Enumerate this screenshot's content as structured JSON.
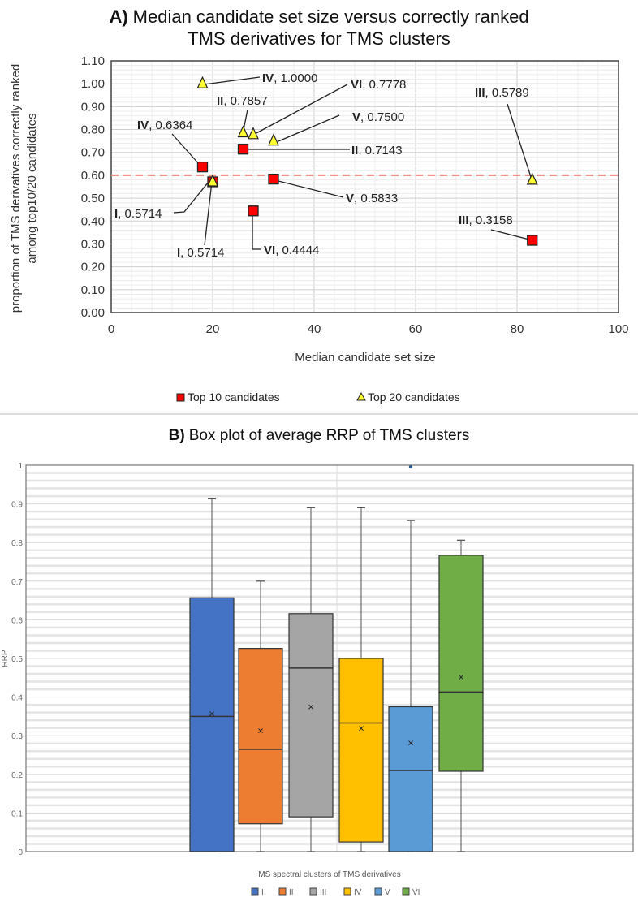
{
  "chart_data": [
    {
      "type": "scatter",
      "title_part": "A)",
      "title_line1": "Median candidate set size versus correctly ranked",
      "title_line2": "TMS derivatives for TMS clusters",
      "xlabel": "Median candidate set size",
      "ylabel_line1": "proportion  of TMS derivatives  correctly ranked",
      "ylabel_line2": "among top10/20  candidates",
      "xlim": [
        0,
        100
      ],
      "ylim": [
        0,
        1.1
      ],
      "xticks": [
        "0",
        "20",
        "40",
        "60",
        "80",
        "100"
      ],
      "yticks": [
        "0.00",
        "0.10",
        "0.20",
        "0.30",
        "0.40",
        "0.50",
        "0.60",
        "0.70",
        "0.80",
        "0.90",
        "1.00",
        "1.10"
      ],
      "grid": true,
      "reference_line": {
        "y": 0.6,
        "color": "#f08080",
        "style": "dashed"
      },
      "legend_position": "bottom",
      "series": [
        {
          "name": "Top 10 candidates",
          "marker": "square",
          "color": "#ff0000",
          "points": [
            {
              "cluster": "I",
              "x": 20,
              "y": 0.5714,
              "label_value": "0.5714"
            },
            {
              "cluster": "II",
              "x": 26,
              "y": 0.7143,
              "label_value": "0.7143"
            },
            {
              "cluster": "III",
              "x": 83,
              "y": 0.3158,
              "label_value": "0.3158"
            },
            {
              "cluster": "IV",
              "x": 18,
              "y": 0.6364,
              "label_value": "0.6364"
            },
            {
              "cluster": "V",
              "x": 32,
              "y": 0.5833,
              "label_value": "0.5833"
            },
            {
              "cluster": "VI",
              "x": 28,
              "y": 0.4444,
              "label_value": "0.4444"
            }
          ]
        },
        {
          "name": "Top 20 candidates",
          "marker": "triangle",
          "color": "#ffff33",
          "points": [
            {
              "cluster": "I",
              "x": 20,
              "y": 0.5714,
              "label_value": "0.5714"
            },
            {
              "cluster": "II",
              "x": 26,
              "y": 0.7857,
              "label_value": "0.7857"
            },
            {
              "cluster": "III",
              "x": 83,
              "y": 0.5789,
              "label_value": "0.5789"
            },
            {
              "cluster": "IV",
              "x": 18,
              "y": 1.0,
              "label_value": "1.0000"
            },
            {
              "cluster": "V",
              "x": 32,
              "y": 0.75,
              "label_value": "0.7500"
            },
            {
              "cluster": "VI",
              "x": 28,
              "y": 0.7778,
              "label_value": "0.7778"
            }
          ]
        }
      ]
    },
    {
      "type": "box",
      "title_part": "B)",
      "title": "Box plot of average RRP of TMS clusters",
      "xlabel": "MS spectral clusters of TMS derivatives",
      "ylabel": "RRP",
      "ylim": [
        0,
        1
      ],
      "yticks": [
        "0",
        "0.1",
        "0.2",
        "0.3",
        "0.4",
        "0.5",
        "0.6",
        "0.7",
        "0.8",
        "0.9",
        "1"
      ],
      "grid": true,
      "legend_position": "bottom",
      "series": [
        {
          "name": "I",
          "color": "#4472c4",
          "min": 0,
          "q1": 0,
          "median": 0.35,
          "q3": 0.657,
          "max": 0.913,
          "mean": 0.358,
          "outliers": []
        },
        {
          "name": "II",
          "color": "#ed7d31",
          "min": 0,
          "q1": 0.072,
          "median": 0.265,
          "q3": 0.526,
          "max": 0.7,
          "mean": 0.314,
          "outliers": []
        },
        {
          "name": "III",
          "color": "#a5a5a5",
          "min": 0,
          "q1": 0.09,
          "median": 0.475,
          "q3": 0.616,
          "max": 0.89,
          "mean": 0.376,
          "outliers": []
        },
        {
          "name": "IV",
          "color": "#ffc000",
          "min": 0,
          "q1": 0.025,
          "median": 0.333,
          "q3": 0.5,
          "max": 0.89,
          "mean": 0.32,
          "outliers": []
        },
        {
          "name": "V",
          "color": "#5b9bd5",
          "min": 0,
          "q1": 0,
          "median": 0.21,
          "q3": 0.375,
          "max": 0.857,
          "mean": 0.283,
          "outliers": [
            1.0
          ]
        },
        {
          "name": "VI",
          "color": "#70ad47",
          "min": 0,
          "q1": 0.208,
          "median": 0.413,
          "q3": 0.767,
          "max": 0.806,
          "mean": 0.453,
          "outliers": []
        }
      ]
    }
  ]
}
